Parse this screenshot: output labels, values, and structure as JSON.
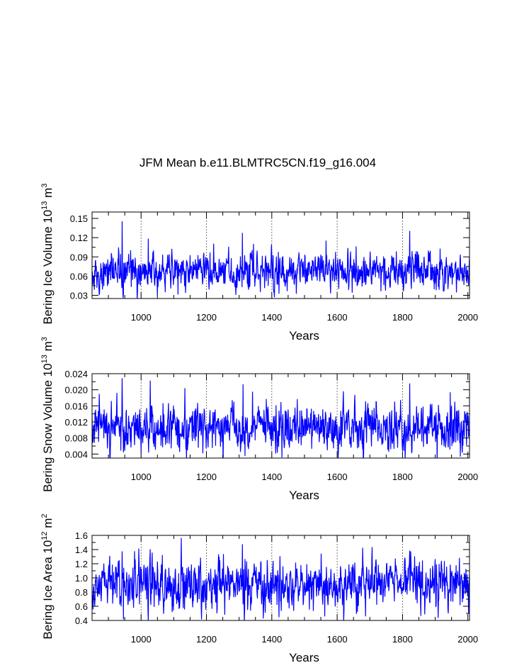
{
  "figure_title": "JFM Mean b.e11.BLMTRC5CN.f19_g16.004",
  "chart_data": [
    {
      "type": "line",
      "name": "ice-volume",
      "ylabel_main": "Bering Ice Volume 10",
      "ylabel_exp": "13",
      "ylabel_unit": " m",
      "ylabel_unit_exp": "3",
      "xlabel": "Years",
      "xlim": [
        850,
        2005
      ],
      "ylim": [
        0.025,
        0.16
      ],
      "xticks": [
        1000,
        1200,
        1400,
        1600,
        1800,
        2000
      ],
      "xtick_labels": [
        "1000",
        "1200",
        "1400",
        "1600",
        "1800",
        "2000"
      ],
      "yticks": [
        0.03,
        0.06,
        0.09,
        0.12,
        0.15
      ],
      "ytick_labels": [
        "0.03",
        "0.06",
        "0.09",
        "0.12",
        "0.15"
      ],
      "grid_x": [
        1000,
        1200,
        1400,
        1600,
        1800
      ],
      "series": [
        {
          "name": "Bering Ice Volume",
          "color": "#0000ff",
          "mean": 0.068,
          "sd": 0.014,
          "peaks": [
            [
              942,
              0.145
            ],
            [
              1310,
              0.127
            ],
            [
              1822,
              0.13
            ],
            [
              1022,
              0.118
            ],
            [
              1566,
              0.115
            ]
          ],
          "troughs": [
            [
              946,
              0.032
            ],
            [
              1422,
              0.033
            ],
            [
              872,
              0.031
            ]
          ]
        }
      ]
    },
    {
      "type": "line",
      "name": "snow-volume",
      "ylabel_main": "Bering Snow Volume 10",
      "ylabel_exp": "13",
      "ylabel_unit": " m",
      "ylabel_unit_exp": "3",
      "xlabel": "Years",
      "xlim": [
        850,
        2005
      ],
      "ylim": [
        0.003,
        0.024
      ],
      "xticks": [
        1000,
        1200,
        1400,
        1600,
        1800,
        2000
      ],
      "xtick_labels": [
        "1000",
        "1200",
        "1400",
        "1600",
        "1800",
        "2000"
      ],
      "yticks": [
        0.004,
        0.008,
        0.012,
        0.016,
        0.02,
        0.024
      ],
      "ytick_labels": [
        "0.004",
        "0.008",
        "0.012",
        "0.016",
        "0.020",
        "0.024"
      ],
      "grid_x": [
        1000,
        1200,
        1400,
        1600,
        1800
      ],
      "series": [
        {
          "name": "Bering Snow Volume",
          "color": "#0000ff",
          "mean": 0.0105,
          "sd": 0.0028,
          "peaks": [
            [
              942,
              0.0228
            ],
            [
              1028,
              0.0222
            ],
            [
              1822,
              0.0215
            ],
            [
              1312,
              0.0213
            ],
            [
              1946,
              0.0193
            ]
          ],
          "troughs": [
            [
              946,
              0.0045
            ],
            [
              1318,
              0.0036
            ],
            [
              1412,
              0.0042
            ]
          ]
        }
      ]
    },
    {
      "type": "line",
      "name": "ice-area",
      "ylabel_main": "Bering Ice Area 10",
      "ylabel_exp": "12",
      "ylabel_unit": " m",
      "ylabel_unit_exp": "2",
      "xlabel": "Years",
      "xlim": [
        850,
        2005
      ],
      "ylim": [
        0.4,
        1.6
      ],
      "xticks": [
        1000,
        1200,
        1400,
        1600,
        1800,
        2000
      ],
      "xtick_labels": [
        "1000",
        "1200",
        "1400",
        "1600",
        "1800",
        "2000"
      ],
      "yticks": [
        0.4,
        0.6,
        0.8,
        1.0,
        1.2,
        1.4,
        1.6
      ],
      "ytick_labels": [
        "0.4",
        "0.6",
        "0.8",
        "1.0",
        "1.2",
        "1.4",
        "1.6"
      ],
      "grid_x": [
        1000,
        1200,
        1400,
        1600,
        1800
      ],
      "series": [
        {
          "name": "Bering Ice Area",
          "color": "#0000ff",
          "mean": 0.9,
          "sd": 0.17,
          "peaks": [
            [
              1310,
              1.47
            ],
            [
              1678,
              1.42
            ],
            [
              1028,
              1.4
            ],
            [
              942,
              1.37
            ],
            [
              1822,
              1.38
            ]
          ],
          "troughs": [
            [
              946,
              0.42
            ],
            [
              1185,
              0.42
            ],
            [
              1422,
              0.45
            ],
            [
              2002,
              0.5
            ]
          ]
        }
      ]
    }
  ]
}
